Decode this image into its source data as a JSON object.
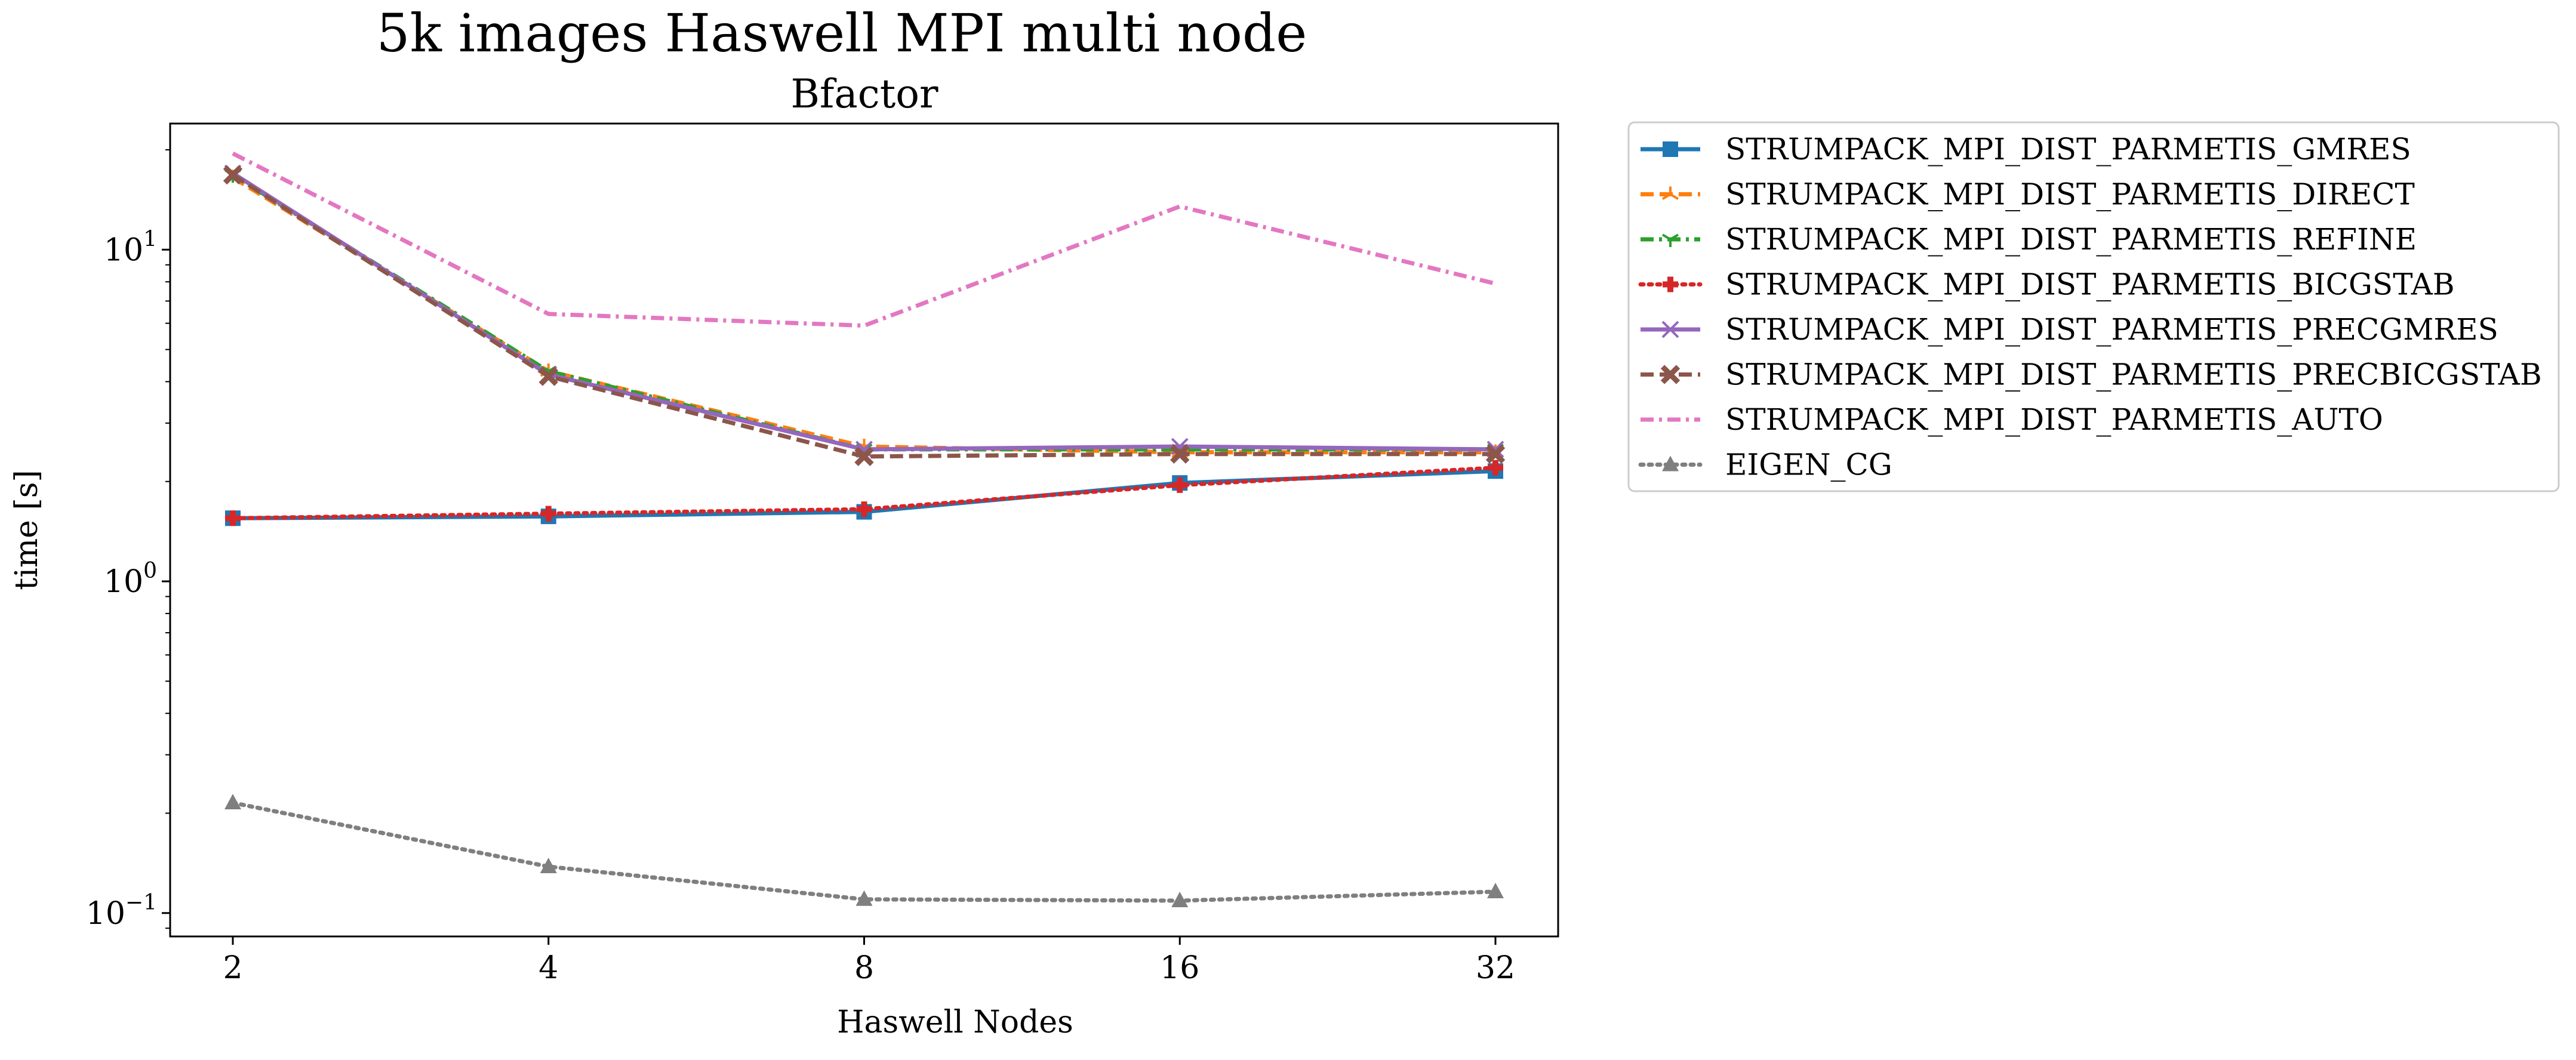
{
  "chart_data": {
    "type": "line",
    "title": "5k images Haswell MPI multi node",
    "subtitle": "Bfactor",
    "xlabel": "Haswell Nodes",
    "ylabel": "time [s]",
    "x": [
      2,
      4,
      8,
      16,
      32
    ],
    "x_tick_labels": [
      "2",
      "4",
      "8",
      "16",
      "32"
    ],
    "x_scale": "log2",
    "y_scale": "log10",
    "ylim": [
      0.085,
      24
    ],
    "y_ticks": [
      {
        "value": 0.1,
        "base": "10",
        "exp": "−1"
      },
      {
        "value": 1,
        "base": "10",
        "exp": "0"
      },
      {
        "value": 10,
        "base": "10",
        "exp": "1"
      }
    ],
    "grid": false,
    "legend_position": "outside-right-top",
    "series": [
      {
        "name": "STRUMPACK_MPI_DIST_PARMETIS_GMRES",
        "values": [
          1.55,
          1.57,
          1.62,
          1.98,
          2.15
        ],
        "color": "#1f77b4",
        "dash": "solid",
        "marker": "square"
      },
      {
        "name": "STRUMPACK_MPI_DIST_PARMETIS_DIRECT",
        "values": [
          16.5,
          4.3,
          2.55,
          2.45,
          2.45
        ],
        "color": "#ff7f0e",
        "dash": "dashed",
        "marker": "tri_up"
      },
      {
        "name": "STRUMPACK_MPI_DIST_PARMETIS_REFINE",
        "values": [
          16.8,
          4.3,
          2.5,
          2.5,
          2.5
        ],
        "color": "#2ca02c",
        "dash": "dashdot",
        "marker": "tri_down"
      },
      {
        "name": "STRUMPACK_MPI_DIST_PARMETIS_BICGSTAB",
        "values": [
          1.55,
          1.6,
          1.65,
          1.95,
          2.2
        ],
        "color": "#d62728",
        "dash": "dotted",
        "marker": "plus"
      },
      {
        "name": "STRUMPACK_MPI_DIST_PARMETIS_PRECGMRES",
        "values": [
          17.0,
          4.2,
          2.5,
          2.55,
          2.5
        ],
        "color": "#9467bd",
        "dash": "solid",
        "marker": "x"
      },
      {
        "name": "STRUMPACK_MPI_DIST_PARMETIS_PRECBICGSTAB",
        "values": [
          16.8,
          4.15,
          2.38,
          2.42,
          2.42
        ],
        "color": "#8c564b",
        "dash": "dashed",
        "marker": "xfilled"
      },
      {
        "name": "STRUMPACK_MPI_DIST_PARMETIS_AUTO",
        "values": [
          19.5,
          6.4,
          5.9,
          13.5,
          7.9
        ],
        "color": "#e377c2",
        "dash": "dashdot",
        "marker": "none"
      },
      {
        "name": "EIGEN_CG",
        "values": [
          0.215,
          0.138,
          0.11,
          0.109,
          0.116
        ],
        "color": "#7f7f7f",
        "dash": "dotted",
        "marker": "triangle"
      }
    ]
  }
}
